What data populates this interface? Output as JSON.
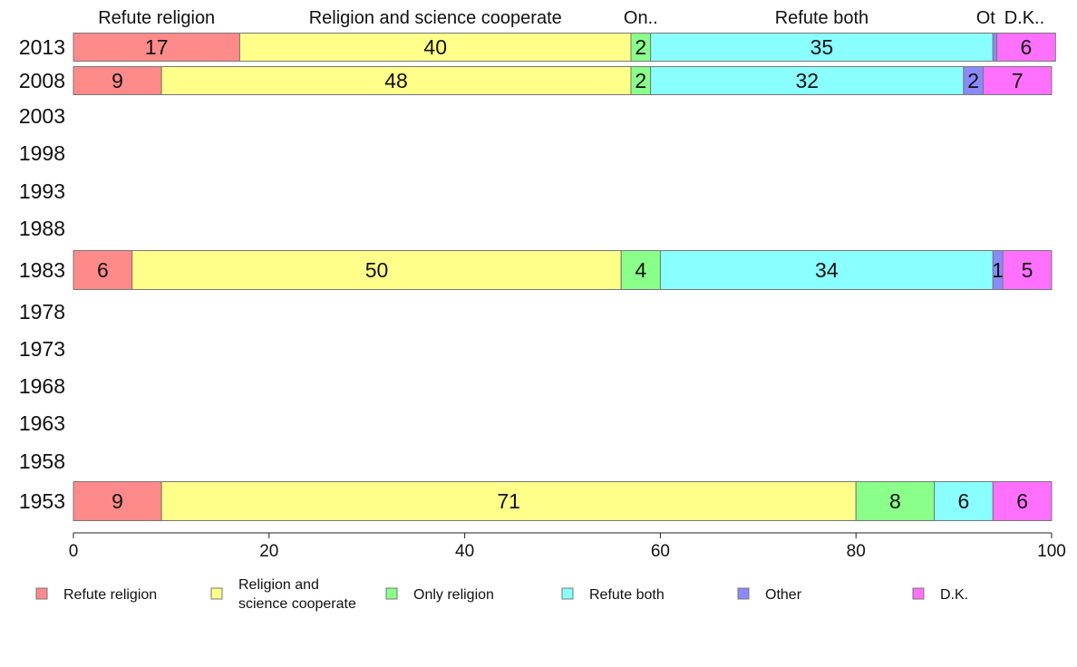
{
  "chart_data": {
    "type": "bar",
    "orientation": "horizontal",
    "stacked": true,
    "xlim": [
      0,
      100
    ],
    "x_ticks": [
      "0",
      "20",
      "40",
      "60",
      "80",
      "100"
    ],
    "x_tick_values": [
      0,
      20,
      40,
      60,
      80,
      100
    ],
    "categories": [
      "2013",
      "2008",
      "2003",
      "1998",
      "1993",
      "1988",
      "1983",
      "1978",
      "1973",
      "1968",
      "1963",
      "1958",
      "1953"
    ],
    "series": [
      {
        "name": "Refute religion",
        "color": "#ff8a8a",
        "values": [
          17,
          9,
          null,
          null,
          null,
          null,
          6,
          null,
          null,
          null,
          null,
          null,
          9
        ]
      },
      {
        "name": "Religion and science cooperate",
        "color": "#ffff8a",
        "values": [
          40,
          48,
          null,
          null,
          null,
          null,
          50,
          null,
          null,
          null,
          null,
          null,
          71
        ]
      },
      {
        "name": "Only religion",
        "color": "#8aff8a",
        "values": [
          2,
          2,
          null,
          null,
          null,
          null,
          4,
          null,
          null,
          null,
          null,
          null,
          8
        ]
      },
      {
        "name": "Refute both",
        "color": "#8affff",
        "values": [
          35,
          32,
          null,
          null,
          null,
          null,
          34,
          null,
          null,
          null,
          null,
          null,
          6
        ]
      },
      {
        "name": "Other",
        "color": "#8a8aff",
        "values": [
          0.4,
          2,
          null,
          null,
          null,
          null,
          1,
          null,
          null,
          null,
          null,
          null,
          0
        ]
      },
      {
        "name": "D.K.",
        "color": "#ff70ff",
        "values": [
          6,
          7,
          null,
          null,
          null,
          null,
          5,
          null,
          null,
          null,
          null,
          null,
          6
        ]
      }
    ],
    "segment_labels": [
      [
        "17",
        "40",
        "2",
        "35",
        "",
        "6"
      ],
      [
        "9",
        "48",
        "2",
        "32",
        "2",
        "7"
      ],
      null,
      null,
      null,
      null,
      [
        "6",
        "50",
        "4",
        "34",
        "1",
        "5"
      ],
      null,
      null,
      null,
      null,
      null,
      [
        "9",
        "71",
        "8",
        "6",
        "",
        "6"
      ]
    ],
    "header_labels": [
      "Refute religion",
      "Religion and science cooperate",
      "On..",
      "Refute both",
      "Ot",
      "D.K.."
    ],
    "legend": {
      "placement": "bottom",
      "items": [
        {
          "lines": [
            "Refute religion"
          ],
          "color": "#ff8a8a"
        },
        {
          "lines": [
            "Religion and",
            "science cooperate"
          ],
          "color": "#ffff8a"
        },
        {
          "lines": [
            "Only religion"
          ],
          "color": "#8aff8a"
        },
        {
          "lines": [
            "Refute both"
          ],
          "color": "#8affff"
        },
        {
          "lines": [
            "Other"
          ],
          "color": "#8a8aff"
        },
        {
          "lines": [
            "D.K."
          ],
          "color": "#ff70ff"
        }
      ]
    },
    "grid": false
  }
}
